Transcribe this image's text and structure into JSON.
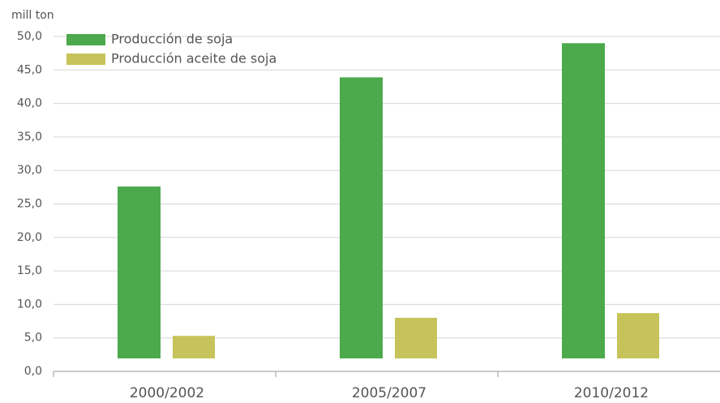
{
  "chart_data": {
    "type": "bar",
    "y_label": "mill ton",
    "categories": [
      "2000/2002",
      "2005/2007",
      "2010/2012"
    ],
    "series": [
      {
        "name": "Producción de soja",
        "color": "#4caa4c",
        "values": [
          27.6,
          43.9,
          49.0
        ]
      },
      {
        "name": "Producción aceite de soja",
        "color": "#c6c35a",
        "values": [
          5.3,
          8.0,
          8.7
        ]
      }
    ],
    "ylim": [
      0,
      50
    ],
    "yticks": [
      {
        "value": 0,
        "label": "0,0"
      },
      {
        "value": 5,
        "label": "5,0"
      },
      {
        "value": 10,
        "label": "10,0"
      },
      {
        "value": 15,
        "label": "15,0"
      },
      {
        "value": 20,
        "label": "20,0"
      },
      {
        "value": 25,
        "label": "25,0"
      },
      {
        "value": 30,
        "label": "30,0"
      },
      {
        "value": 35,
        "label": "35,0"
      },
      {
        "value": 40,
        "label": "40,0"
      },
      {
        "value": 45,
        "label": "45,0"
      },
      {
        "value": 50,
        "label": "50,0"
      }
    ],
    "grid": true,
    "legend": "top-left"
  }
}
